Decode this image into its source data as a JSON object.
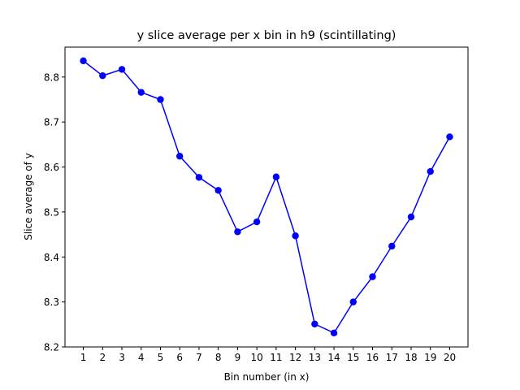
{
  "chart_data": {
    "type": "line",
    "title": "y slice average per x bin in h9 (scintillating)",
    "xlabel": "Bin number (in x)",
    "ylabel": "Slice average of y",
    "x": [
      1,
      2,
      3,
      4,
      5,
      6,
      7,
      8,
      9,
      10,
      11,
      12,
      13,
      14,
      15,
      16,
      17,
      18,
      19,
      20
    ],
    "series": [
      {
        "values": [
          8.836,
          8.803,
          8.817,
          8.766,
          8.75,
          8.624,
          8.577,
          8.548,
          8.456,
          8.478,
          8.578,
          8.447,
          8.251,
          8.231,
          8.3,
          8.356,
          8.424,
          8.489,
          8.59,
          8.667
        ],
        "color": "#0000ff",
        "marker": "circle"
      }
    ],
    "xticks": [
      "1",
      "2",
      "3",
      "4",
      "5",
      "6",
      "7",
      "8",
      "9",
      "10",
      "11",
      "12",
      "13",
      "14",
      "15",
      "16",
      "17",
      "18",
      "19",
      "20"
    ],
    "yticks": [
      "8.2",
      "8.3",
      "8.4",
      "8.5",
      "8.6",
      "8.7",
      "8.8"
    ],
    "ytick_values": [
      8.2,
      8.3,
      8.4,
      8.5,
      8.6,
      8.7,
      8.8
    ],
    "xlim": [
      0.05,
      20.95
    ],
    "ylim": [
      8.2,
      8.8665
    ],
    "grid": false,
    "legend": "none"
  }
}
